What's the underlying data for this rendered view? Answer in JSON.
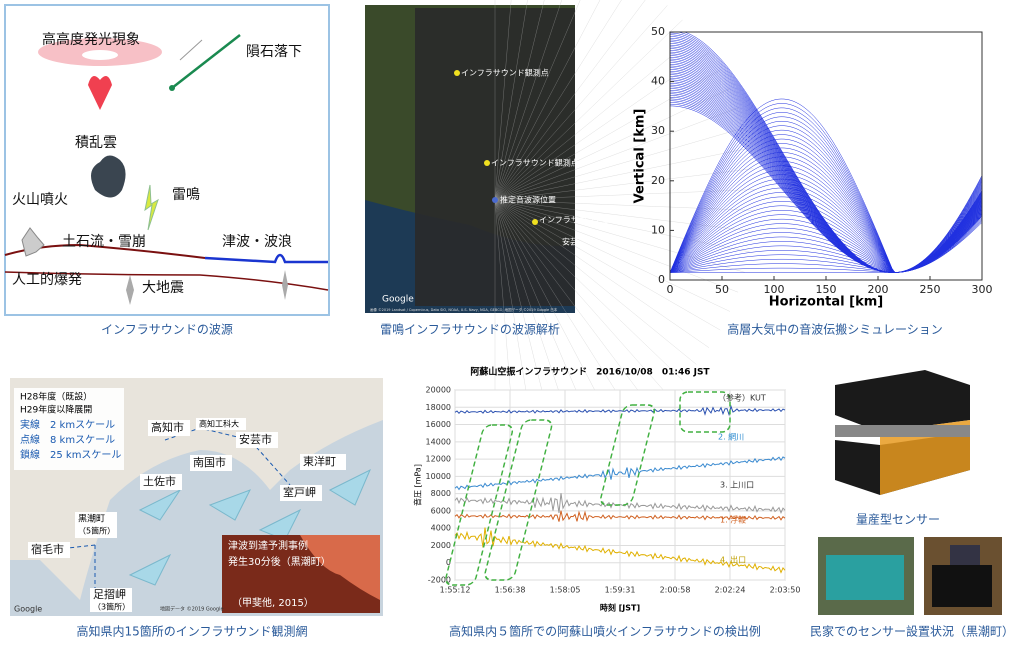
{
  "panels": [
    {
      "caption": "インフラサウンドの波源",
      "labels": [
        "高高度発光現象",
        "隕石落下",
        "積乱雲",
        "雷鳴",
        "火山噴火",
        "土石流・雪崩",
        "津波・波浪",
        "人工的爆発",
        "大地震"
      ]
    },
    {
      "caption": "雷鳴インフラサウンドの波源解析",
      "labels": [
        "インフラサウンド観測点",
        "インフラサウンド観測点",
        "推定音波源位置",
        "インフラサウンド観測点",
        "安芸"
      ],
      "logo": "Google",
      "attribution": "画像 ©2019 Landsat / Copernicus, Data SIO, NOAA, U.S. Navy, NGA, GEBCO, 地図データ ©2019 Google 日本"
    },
    {
      "caption": "高層大気中の音波伝搬シミュレーション",
      "xlabel": "Horizontal [km]",
      "ylabel": "Vertical [km]",
      "xlim": [
        0,
        300
      ],
      "ylim": [
        0,
        50
      ],
      "xticks": [
        0,
        50,
        100,
        150,
        200,
        250,
        300
      ],
      "yticks": [
        0,
        10,
        20,
        30,
        40,
        50
      ]
    },
    {
      "caption": "高知県内15箇所のインフラサウンド観測網",
      "legend": [
        "H28年度（既設）",
        "H29年度以降展開",
        "実線　2 kmスケール",
        "点線　8 kmスケール",
        "鎖線　25 kmスケール"
      ],
      "labels": [
        "高知市",
        "高知工科大",
        "安芸市",
        "南国市",
        "東洋町",
        "土佐市",
        "室戸岬",
        "黒潮町",
        "（5箇所）",
        "宿毛市",
        "足摺岬",
        "（3箇所）"
      ],
      "inset": [
        "津波到達予測事例",
        "発生30分後（黒潮町）",
        "（甲斐他, 2015）"
      ],
      "logo": "Google",
      "attribution": "地図データ ©2019 Google"
    },
    {
      "caption": "高知県内５箇所での阿蘇山噴火インフラサウンドの検出例",
      "title": "阿蘇山空振インフラサウンド　2016/10/08　01:46 JST",
      "ylabel": "音圧 [mPa]",
      "xlabel": "時刻 [JST]",
      "ylim": [
        -2000,
        20000
      ],
      "yticks": [
        -2000,
        0,
        2000,
        4000,
        6000,
        8000,
        10000,
        12000,
        14000,
        16000,
        18000,
        20000
      ],
      "categories": [
        "1:55:12",
        "1:56:38",
        "1:58:05",
        "1:59:31",
        "2:00:58",
        "2:02:24",
        "2:03:50"
      ],
      "series_labels": [
        "（参考）KUT",
        "2. 網川",
        "3. 上川口",
        "1. 浮鞭",
        "4. 出口"
      ]
    },
    {
      "captions": [
        "量産型センサー",
        "民家でのセンサー設置状況（黒潮町）"
      ]
    }
  ]
}
